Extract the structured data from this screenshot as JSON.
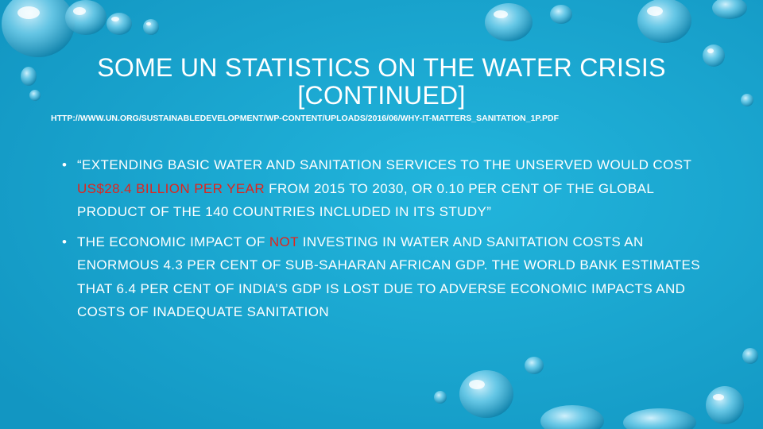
{
  "slide": {
    "title_line1": "SOME UN STATISTICS ON THE WATER CRISIS",
    "title_line2": "[CONTINUED]",
    "source_url": "HTTP://WWW.UN.ORG/SUSTAINABLEDEVELOPMENT/WP-CONTENT/UPLOADS/2016/06/WHY-IT-MATTERS_SANITATION_1P.PDF",
    "bullet_glyph": "•",
    "bullets": [
      {
        "before": "“EXTENDING BASIC WATER AND SANITATION SERVICES TO THE UNSERVED WOULD COST ",
        "highlight": "US$28.4 BILLION PER YEAR",
        "after": " FROM 2015 TO 2030, OR 0.10 PER CENT OF THE GLOBAL PRODUCT OF THE 140 COUNTRIES INCLUDED IN ITS STUDY”"
      },
      {
        "before": "THE ECONOMIC IMPACT OF ",
        "highlight": "NOT",
        "after": " INVESTING IN WATER AND SANITATION COSTS AN ENORMOUS 4.3 PER CENT OF SUB-SAHARAN AFRICAN GDP. THE WORLD BANK ESTIMATES THAT 6.4 PER CENT OF INDIA’S GDP IS LOST DUE TO ADVERSE ECONOMIC IMPACTS AND COSTS OF INADEQUATE SANITATION"
      }
    ]
  },
  "colors": {
    "background": "#1ba7cf",
    "text": "#ffffff",
    "highlight": "#e2241b"
  }
}
